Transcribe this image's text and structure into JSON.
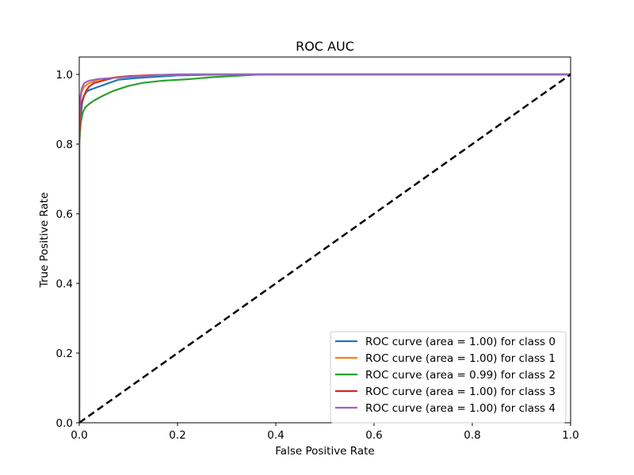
{
  "chart_data": {
    "type": "line",
    "title": "ROC AUC",
    "xlabel": "False Positive Rate",
    "ylabel": "True Positive Rate",
    "xlim": [
      0.0,
      1.0
    ],
    "ylim": [
      0.0,
      1.05
    ],
    "xticks": [
      "0.0",
      "0.2",
      "0.4",
      "0.6",
      "0.8",
      "1.0"
    ],
    "yticks": [
      "0.0",
      "0.2",
      "0.4",
      "0.6",
      "0.8",
      "1.0"
    ],
    "grid": false,
    "legend_position": "lower-right",
    "series": [
      {
        "name": "ROC curve (area = 1.00) for class 0",
        "color": "#1f77b4",
        "x": [
          0.0,
          0.0,
          0.003,
          0.006,
          0.01,
          0.015,
          0.02,
          0.03,
          0.05,
          0.08,
          0.12,
          0.2,
          0.3,
          0.5,
          1.0
        ],
        "y": [
          0.0,
          0.8,
          0.88,
          0.92,
          0.94,
          0.95,
          0.955,
          0.96,
          0.97,
          0.985,
          0.99,
          0.997,
          1.0,
          1.0,
          1.0
        ]
      },
      {
        "name": "ROC curve (area = 1.00) for class 1",
        "color": "#ff7f0e",
        "x": [
          0.0,
          0.0,
          0.002,
          0.005,
          0.01,
          0.02,
          0.04,
          0.08,
          0.15,
          0.25,
          0.5,
          1.0
        ],
        "y": [
          0.0,
          0.85,
          0.92,
          0.95,
          0.965,
          0.975,
          0.985,
          0.993,
          0.998,
          1.0,
          1.0,
          1.0
        ]
      },
      {
        "name": "ROC curve (area = 0.99) for class 2",
        "color": "#2ca02c",
        "x": [
          0.0,
          0.0,
          0.003,
          0.007,
          0.012,
          0.02,
          0.03,
          0.05,
          0.07,
          0.1,
          0.13,
          0.17,
          0.22,
          0.27,
          0.32,
          0.37,
          0.5,
          1.0
        ],
        "y": [
          0.0,
          0.8,
          0.86,
          0.89,
          0.905,
          0.915,
          0.925,
          0.94,
          0.953,
          0.967,
          0.976,
          0.982,
          0.986,
          0.992,
          0.996,
          1.0,
          1.0,
          1.0
        ]
      },
      {
        "name": "ROC curve (area = 1.00) for class 3",
        "color": "#d62728",
        "x": [
          0.0,
          0.0,
          0.002,
          0.005,
          0.01,
          0.015,
          0.02,
          0.03,
          0.05,
          0.07,
          0.1,
          0.15,
          0.2,
          0.3,
          1.0
        ],
        "y": [
          0.0,
          0.82,
          0.88,
          0.92,
          0.94,
          0.955,
          0.965,
          0.975,
          0.983,
          0.99,
          0.995,
          0.998,
          1.0,
          1.0,
          1.0
        ]
      },
      {
        "name": "ROC curve (area = 1.00) for class 4",
        "color": "#9467bd",
        "x": [
          0.0,
          0.0,
          0.002,
          0.005,
          0.01,
          0.02,
          0.04,
          0.07,
          0.1,
          0.15,
          0.2,
          0.3,
          1.0
        ],
        "y": [
          0.0,
          0.86,
          0.93,
          0.96,
          0.975,
          0.982,
          0.987,
          0.99,
          0.993,
          0.997,
          1.0,
          1.0,
          1.0
        ]
      },
      {
        "name": "",
        "color": "#000000",
        "dashed": true,
        "x": [
          0.0,
          1.0
        ],
        "y": [
          0.0,
          1.0
        ]
      }
    ]
  }
}
